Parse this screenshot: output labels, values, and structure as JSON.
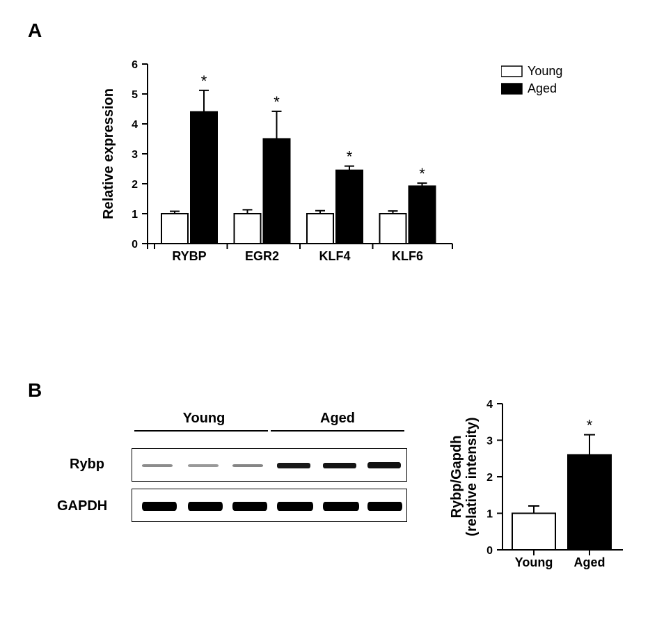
{
  "panelA": {
    "label": "A",
    "ytitle": "Relative expression",
    "ylim": [
      0,
      6
    ],
    "yticks": [
      0,
      1,
      2,
      3,
      4,
      5,
      6
    ],
    "categories": [
      "RYBP",
      "EGR2",
      "KLF4",
      "KLF6"
    ],
    "young": {
      "vals": [
        1.0,
        1.0,
        1.0,
        1.0
      ],
      "errs": [
        0.08,
        0.13,
        0.1,
        0.09
      ]
    },
    "aged": {
      "vals": [
        4.4,
        3.5,
        2.45,
        1.92
      ],
      "errs": [
        0.72,
        0.92,
        0.14,
        0.1
      ]
    },
    "sig": [
      "*",
      "*",
      "*",
      "*"
    ],
    "legend": [
      {
        "label": "Young",
        "fill": "#ffffff",
        "stroke": "#000000"
      },
      {
        "label": "Aged",
        "fill": "#000000",
        "stroke": "#000000"
      }
    ],
    "bar_colors": {
      "young": "#ffffff",
      "aged": "#000000"
    },
    "bar_stroke": "#000000",
    "bg": "#ffffff"
  },
  "panelB": {
    "label": "B",
    "blot": {
      "groups": [
        "Young",
        "Aged"
      ],
      "proteins": [
        "Rybp",
        "GAPDH"
      ],
      "rybp_intensity_young": [
        0.25,
        0.22,
        0.28
      ],
      "rybp_intensity_aged": [
        0.72,
        0.78,
        0.82
      ],
      "gapdh_intensity": [
        0.9,
        0.9,
        0.9,
        0.92,
        0.92,
        0.92
      ]
    },
    "chart": {
      "ytitle1": "Rybp/Gapdh",
      "ytitle2": "(relative intensity)",
      "ylim": [
        0,
        4
      ],
      "yticks": [
        0,
        1,
        2,
        3,
        4
      ],
      "categories": [
        "Young",
        "Aged"
      ],
      "vals": [
        1.0,
        2.6
      ],
      "errs": [
        0.2,
        0.55
      ],
      "sig": [
        null,
        "*"
      ],
      "young_color": "#ffffff",
      "aged_color": "#000000"
    }
  }
}
